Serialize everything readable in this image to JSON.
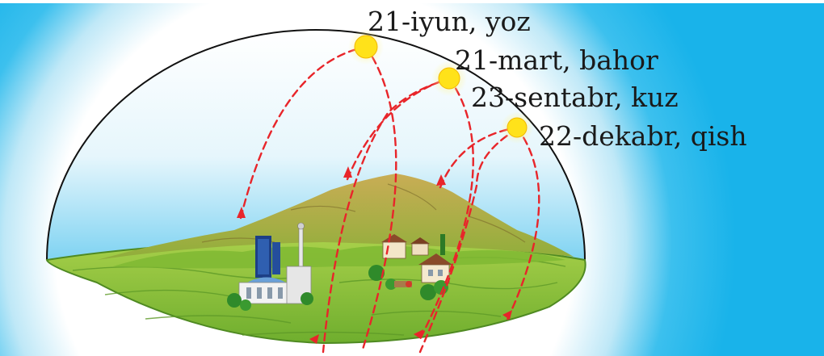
{
  "labels": {
    "summer": "21-iyun, yoz",
    "spring": "21-mart, bahor",
    "autumn": "23-sentabr, kuz",
    "winter": "22-dekabr, qish"
  },
  "colors": {
    "sky_outer": "#1ab5ec",
    "sky_glow": "#ffffff",
    "dome_outline": "#111111",
    "sun": "#ffe21a",
    "sun_glow": "#fff59a",
    "path": "#e8252a",
    "ground": "#8fc43a",
    "mountain": "#b59a45"
  },
  "icons": [
    "sun-icon",
    "city-icon",
    "village-icon",
    "arrow-icon"
  ]
}
